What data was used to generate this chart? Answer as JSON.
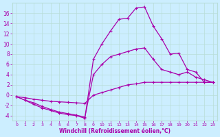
{
  "background_color": "#cceeff",
  "grid_color": "#b8ddd8",
  "line_color": "#aa00aa",
  "marker": "+",
  "xlabel": "Windchill (Refroidissement éolien,°C)",
  "xlim": [
    -0.5,
    23.5
  ],
  "ylim": [
    -5,
    18
  ],
  "yticks": [
    -4,
    -2,
    0,
    2,
    4,
    6,
    8,
    10,
    12,
    14,
    16
  ],
  "xticks": [
    0,
    1,
    2,
    3,
    4,
    5,
    6,
    7,
    8,
    9,
    10,
    11,
    12,
    13,
    14,
    15,
    16,
    17,
    18,
    19,
    20,
    21,
    22,
    23
  ],
  "line1_x": [
    0,
    1,
    2,
    3,
    4,
    5,
    6,
    7,
    8,
    9,
    10,
    11,
    12,
    13,
    14,
    15,
    16,
    17,
    18,
    19,
    20,
    21,
    22,
    23
  ],
  "line1_y": [
    -0.3,
    -1.0,
    -1.8,
    -2.5,
    -3.0,
    -3.5,
    -3.8,
    -4.0,
    -4.5,
    7.0,
    10.0,
    12.5,
    14.8,
    15.0,
    17.0,
    17.2,
    13.5,
    11.0,
    8.0,
    8.2,
    5.0,
    4.5,
    2.5,
    2.5
  ],
  "line2_x": [
    0,
    1,
    2,
    3,
    4,
    5,
    6,
    7,
    8,
    9,
    10,
    11,
    12,
    13,
    14,
    15,
    16,
    17,
    18,
    19,
    20,
    21,
    22,
    23
  ],
  "line2_y": [
    -0.3,
    -1.0,
    -1.5,
    -2.2,
    -2.8,
    -3.3,
    -3.6,
    -3.9,
    -4.3,
    4.0,
    6.0,
    7.5,
    8.0,
    8.5,
    9.0,
    9.2,
    7.0,
    5.0,
    4.5,
    4.0,
    4.5,
    3.5,
    3.0,
    2.5
  ],
  "line3_x": [
    0,
    1,
    2,
    3,
    4,
    5,
    6,
    7,
    8,
    9,
    10,
    11,
    12,
    13,
    14,
    15,
    16,
    17,
    18,
    19,
    20,
    21,
    22,
    23
  ],
  "line3_y": [
    -0.3,
    -0.5,
    -0.8,
    -1.0,
    -1.2,
    -1.3,
    -1.4,
    -1.5,
    -1.6,
    0.0,
    0.5,
    1.0,
    1.5,
    2.0,
    2.2,
    2.5,
    2.5,
    2.5,
    2.5,
    2.5,
    2.5,
    2.5,
    2.5,
    2.5
  ]
}
